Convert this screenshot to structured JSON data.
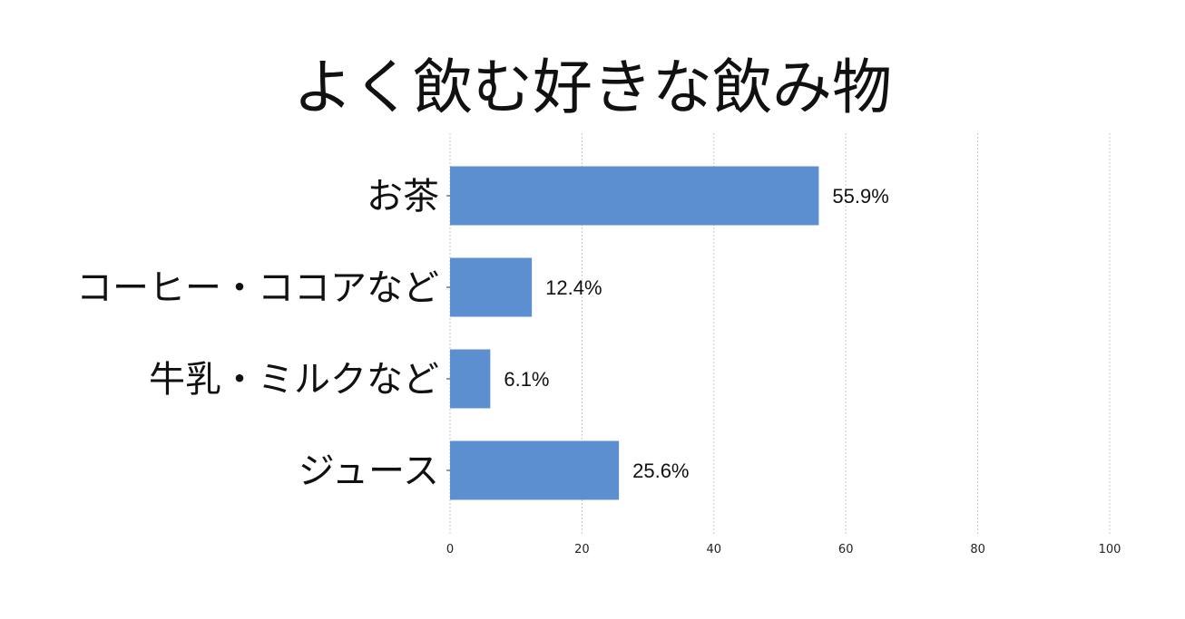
{
  "chart_data": {
    "type": "bar",
    "orientation": "horizontal",
    "title": "よく飲む好きな飲み物",
    "categories": [
      "お茶",
      "コーヒー・ココアなど",
      "牛乳・ミルクなど",
      "ジュース"
    ],
    "values": [
      55.9,
      12.4,
      6.1,
      25.6
    ],
    "value_labels": [
      "55.9%",
      "12.4%",
      "6.1%",
      "25.6%"
    ],
    "xlim": [
      0,
      100
    ],
    "xticks": [
      0,
      20,
      40,
      60,
      80,
      100
    ],
    "grid": "vertical dashed",
    "bar_color": "#5b8fd0",
    "xlabel": "",
    "ylabel": ""
  }
}
